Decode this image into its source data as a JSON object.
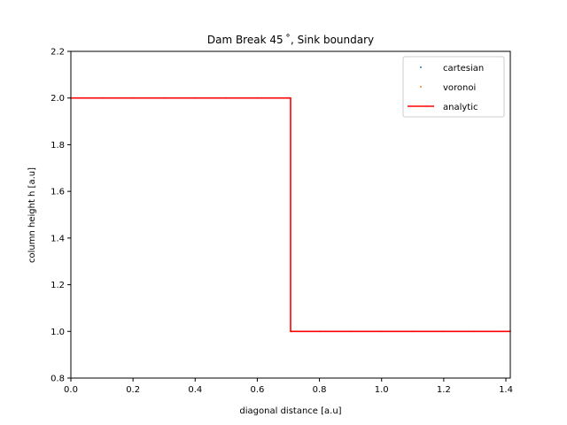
{
  "chart_data": {
    "type": "line",
    "title": "Dam Break 45$^\\circ$, Sink boundary",
    "title_display": "Dam Break 45 ˚, Sink boundary",
    "xlabel": "diagonal distance [a.u]",
    "ylabel": "column height h [a.u]",
    "xlim": [
      0,
      1.4142
    ],
    "ylim": [
      0.8,
      2.2
    ],
    "xticks": [
      0.0,
      0.2,
      0.4,
      0.6,
      0.8,
      1.0,
      1.2,
      1.4
    ],
    "xtick_labels": [
      "0.0",
      "0.2",
      "0.4",
      "0.6",
      "0.8",
      "1.0",
      "1.2",
      "1.4"
    ],
    "yticks": [
      0.8,
      1.0,
      1.2,
      1.4,
      1.6,
      1.8,
      2.0,
      2.2
    ],
    "ytick_labels": [
      "0.8",
      "1.0",
      "1.2",
      "1.4",
      "1.6",
      "1.8",
      "2.0",
      "2.2"
    ],
    "grid": false,
    "legend_position": "top-right",
    "series": [
      {
        "name": "cartesian",
        "kind": "scatter",
        "color": "#1f77b4",
        "x": [
          0.0,
          0.1,
          0.2,
          0.3,
          0.4,
          0.5,
          0.6,
          0.7,
          0.71,
          0.8,
          0.9,
          1.0,
          1.1,
          1.2,
          1.3,
          1.4142
        ],
        "y": [
          2.0,
          2.0,
          2.0,
          2.0,
          2.0,
          2.0,
          2.0,
          2.0,
          1.0,
          1.0,
          1.0,
          1.0,
          1.0,
          1.0,
          1.0,
          1.0
        ]
      },
      {
        "name": "voronoi",
        "kind": "scatter",
        "color": "#ff7f0e",
        "x": [
          0.0,
          0.1,
          0.2,
          0.3,
          0.4,
          0.5,
          0.6,
          0.7,
          0.71,
          0.8,
          0.9,
          1.0,
          1.1,
          1.2,
          1.3,
          1.4142
        ],
        "y": [
          2.0,
          2.0,
          2.0,
          2.0,
          2.0,
          2.0,
          2.0,
          2.0,
          1.0,
          1.0,
          1.0,
          1.0,
          1.0,
          1.0,
          1.0,
          1.0
        ]
      },
      {
        "name": "analytic",
        "kind": "line",
        "color": "#ff0000",
        "x": [
          0.0,
          0.7071,
          0.7071,
          1.4142
        ],
        "y": [
          2.0,
          2.0,
          1.0,
          1.0
        ]
      }
    ]
  }
}
